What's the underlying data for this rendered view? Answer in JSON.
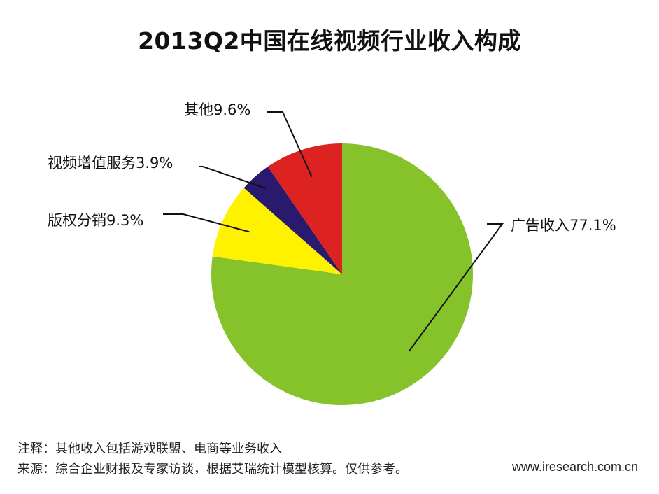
{
  "chart_data": {
    "type": "pie",
    "title": "2013Q2中国在线视频行业收入构成",
    "slices": [
      {
        "label": "广告收入",
        "value": 77.1,
        "display": "广告收入77.1%",
        "color": "#86c22a"
      },
      {
        "label": "版权分销",
        "value": 9.3,
        "display": "版权分销9.3%",
        "color": "#fff200"
      },
      {
        "label": "视频增值服务",
        "value": 3.9,
        "display": "视频增值服务3.9%",
        "color": "#2a1a6e"
      },
      {
        "label": "其他",
        "value": 9.6,
        "display": "其他9.6%",
        "color": "#dd2222"
      }
    ],
    "start_angle_deg": 0,
    "direction": "clockwise"
  },
  "footer": {
    "note": "注释：其他收入包括游戏联盟、电商等业务收入",
    "source": "来源：综合企业财报及专家访谈，根据艾瑞统计模型核算。仅供参考。",
    "watermark": "www.iresearch.com.cn"
  }
}
